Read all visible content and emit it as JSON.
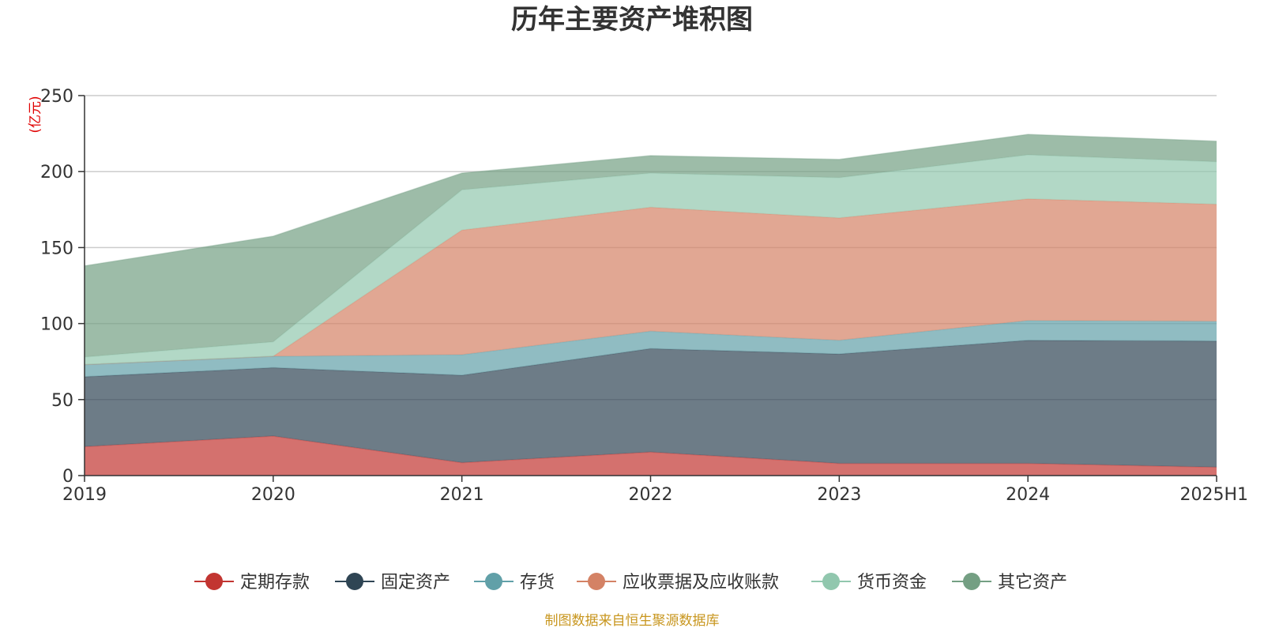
{
  "chart_data": {
    "type": "area",
    "stacked": true,
    "title": "历年主要资产堆积图",
    "unit_label": "(亿元)",
    "categories": [
      "2019",
      "2020",
      "2021",
      "2022",
      "2023",
      "2024",
      "2025H1"
    ],
    "ylim": [
      0,
      250
    ],
    "y_ticks": [
      "0",
      "50",
      "100",
      "150",
      "200",
      "250"
    ],
    "grid": true,
    "legend_position": "bottom",
    "series": [
      {
        "name": "定期存款",
        "color": "#c23531",
        "values": [
          19,
          26,
          8.5,
          15.5,
          8,
          8,
          5.5
        ]
      },
      {
        "name": "固定资产",
        "color": "#2f4554",
        "values": [
          46,
          45,
          57.5,
          68,
          72,
          81,
          83
        ]
      },
      {
        "name": "存货",
        "color": "#61a0a8",
        "values": [
          8,
          7.5,
          13.5,
          11.5,
          9,
          13,
          13
        ]
      },
      {
        "name": "应收票据及应收账款",
        "color": "#d48265",
        "values": [
          0,
          0,
          82,
          81.5,
          80.5,
          80,
          77
        ]
      },
      {
        "name": "货币资金",
        "color": "#91c7ae",
        "values": [
          5,
          9.5,
          26.5,
          22.5,
          26.5,
          29,
          28
        ]
      },
      {
        "name": "其它资产",
        "color": "#749f83",
        "values": [
          60,
          69.5,
          11,
          11.5,
          12,
          13.5,
          13.5
        ]
      }
    ]
  },
  "source_note": "制图数据来自恒生聚源数据库"
}
